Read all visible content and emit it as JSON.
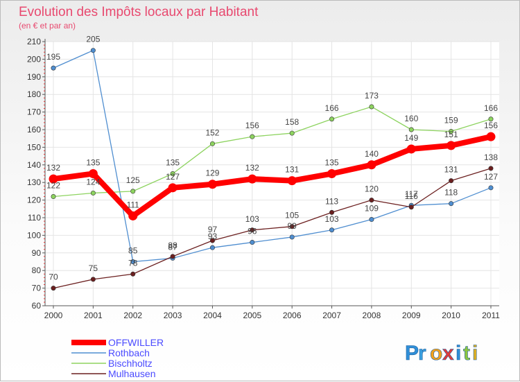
{
  "chart_data": {
    "type": "line",
    "title": "Evolution des Impôts locaux par Habitant",
    "subtitle": "(en € et par an)",
    "xlabel": "",
    "ylabel": "",
    "x": [
      "2000",
      "2001",
      "2002",
      "2003",
      "2004",
      "2005",
      "2006",
      "2007",
      "2008",
      "2009",
      "2010",
      "2011"
    ],
    "ylim": [
      60,
      210
    ],
    "yticks": [
      60,
      70,
      80,
      90,
      100,
      110,
      120,
      130,
      140,
      150,
      160,
      170,
      180,
      190,
      200,
      210
    ],
    "grid": true,
    "legend_position": "bottom-left",
    "series": [
      {
        "name": "OFFWILLER",
        "color": "#ff0000",
        "values": [
          132,
          135,
          111,
          127,
          129,
          132,
          131,
          135,
          140,
          149,
          151,
          156
        ]
      },
      {
        "name": "Rothbach",
        "color": "#4f8ed0",
        "values": [
          195,
          205,
          85,
          87,
          93,
          96,
          99,
          103,
          109,
          117,
          118,
          127
        ]
      },
      {
        "name": "Bischholtz",
        "color": "#8dd35f",
        "values": [
          122,
          124,
          125,
          135,
          152,
          156,
          158,
          166,
          173,
          160,
          159,
          166
        ]
      },
      {
        "name": "Mulhausen",
        "color": "#6b1f1f",
        "values": [
          70,
          75,
          78,
          88,
          97,
          103,
          105,
          113,
          120,
          116,
          131,
          138
        ]
      }
    ]
  },
  "logo": {
    "letters": [
      "P",
      "r",
      "o",
      "x",
      "i",
      "t",
      "i"
    ],
    "colors": [
      "#2f8fd8",
      "#3aa0e0",
      "#f5a21b",
      "#e23b3b",
      "#2f8fd8",
      "#8cc63f",
      "#e0b020"
    ]
  }
}
